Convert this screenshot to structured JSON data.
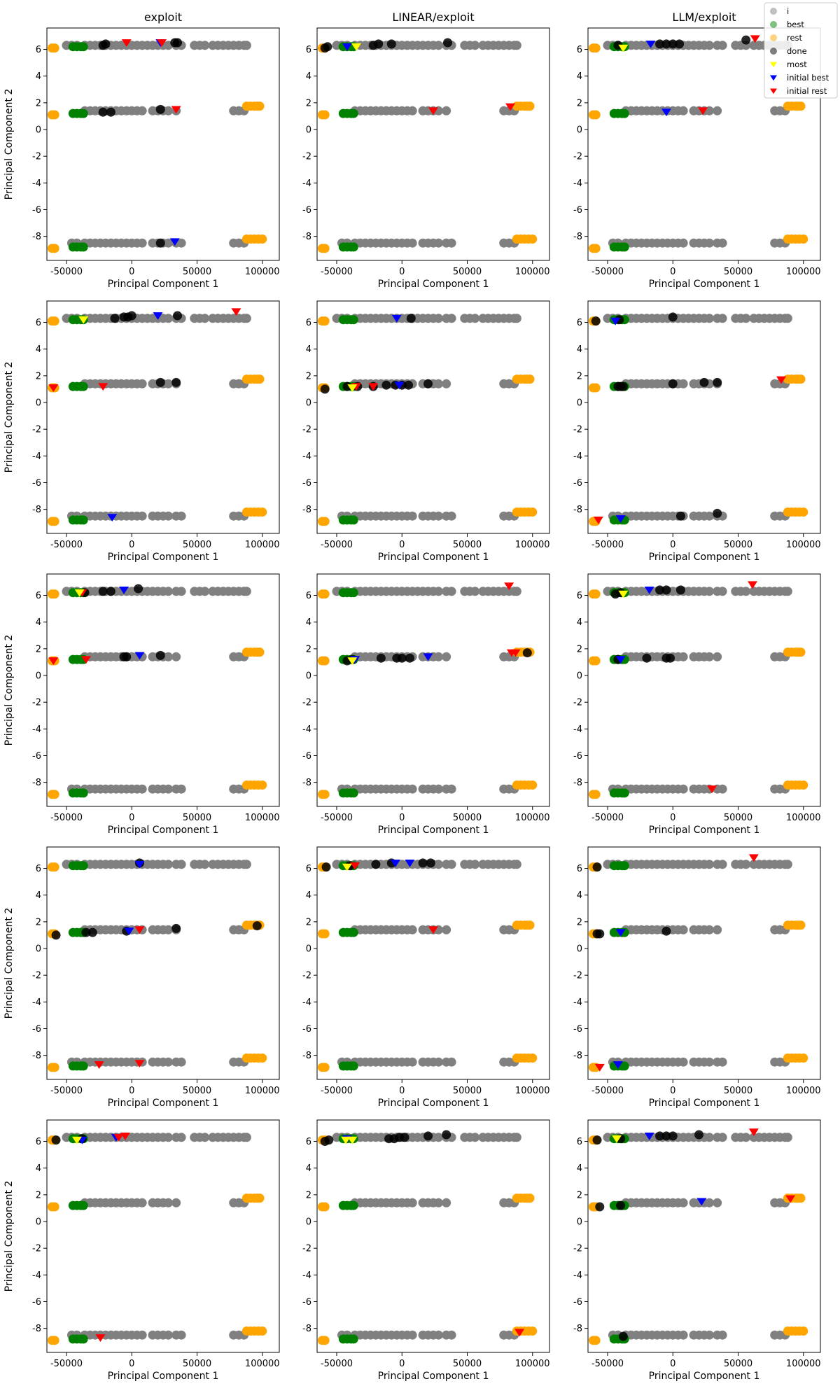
{
  "figure": {
    "columns": [
      "exploit",
      "LINEAR/exploit",
      "LLM/exploit"
    ],
    "xlabel": "Principal Component 1",
    "ylabel": "Principal Component 2"
  },
  "legend": {
    "placement": "top-right",
    "entries": [
      {
        "label": "i",
        "marker": "circle",
        "color": "#808080"
      },
      {
        "label": "best",
        "marker": "circle",
        "color": "#008000"
      },
      {
        "label": "rest",
        "marker": "circle",
        "color": "#FFA500"
      },
      {
        "label": "done",
        "marker": "circle",
        "color": "#000000"
      },
      {
        "label": "most",
        "marker": "triangle-down",
        "color": "#FFFF00"
      },
      {
        "label": "initial best",
        "marker": "triangle-down",
        "color": "#0000FF"
      },
      {
        "label": "initial rest",
        "marker": "triangle-down",
        "color": "#FF0000"
      }
    ]
  },
  "chart_data": {
    "type": "scatter",
    "layout": "5 rows x 3 columns",
    "xlim": [
      -65000,
      113000
    ],
    "ylim": [
      -9.8,
      7.6
    ],
    "xticks": [
      -50000,
      0,
      50000,
      100000
    ],
    "yticks": [
      -8,
      -6,
      -4,
      -2,
      0,
      2,
      4,
      6
    ],
    "grid": false,
    "colors": {
      "i": "#808080",
      "best": "#008000",
      "rest": "#FFA500",
      "done": "#000000",
      "most": "#FFFF00",
      "initial_best": "#0000FF",
      "initial_rest": "#FF0000"
    },
    "background_points": {
      "i_bands": [
        {
          "y": 6.3,
          "x": [
            -50000,
            -46000,
            -42000,
            -36000,
            -32000,
            -28000,
            -24000,
            -20000,
            -16000,
            -12000,
            -8000,
            -4000,
            0,
            4000,
            8000,
            12000,
            16000,
            20000,
            24000,
            28000,
            34000,
            38000,
            48000,
            52000,
            56000,
            62000,
            66000,
            70000,
            74000,
            78000,
            82000,
            86000,
            88000
          ]
        },
        {
          "y": 1.4,
          "x": [
            -36000,
            -32000,
            -28000,
            -24000,
            -20000,
            -16000,
            -12000,
            -8000,
            -4000,
            0,
            4000,
            8000,
            16000,
            20000,
            24000,
            28000,
            34000,
            78000,
            82000,
            86000
          ]
        },
        {
          "y": -8.5,
          "x": [
            -46000,
            -42000,
            -36000,
            -32000,
            -28000,
            -24000,
            -20000,
            -16000,
            -12000,
            -8000,
            -4000,
            0,
            4000,
            8000,
            16000,
            20000,
            24000,
            28000,
            34000,
            38000,
            78000,
            82000,
            86000
          ]
        }
      ],
      "best_bands": [
        {
          "y": 6.2,
          "x": [
            -45000,
            -42000,
            -39000,
            -37000
          ]
        },
        {
          "y": 1.2,
          "x": [
            -45000,
            -42000,
            -39000,
            -37000
          ]
        },
        {
          "y": -8.8,
          "x": [
            -45000,
            -42000,
            -39000,
            -37000
          ]
        }
      ],
      "rest_bands": [
        {
          "y": 6.1,
          "x": [
            -61000,
            -59000
          ]
        },
        {
          "y": 1.1,
          "x": [
            -61000,
            -59000
          ]
        },
        {
          "y": -8.9,
          "x": [
            -61000,
            -59000
          ]
        },
        {
          "y": 1.75,
          "x": [
            88000,
            91000,
            94000,
            96000,
            98000
          ]
        },
        {
          "y": -8.2,
          "x": [
            88000,
            91000,
            94000,
            97000,
            100000
          ]
        }
      ]
    },
    "panels": [
      {
        "row": 0,
        "col": 0,
        "done": [
          [
            -22000,
            6.3
          ],
          [
            -20000,
            6.4
          ],
          [
            33000,
            6.5
          ],
          [
            35000,
            6.5
          ],
          [
            -22000,
            1.3
          ],
          [
            -16000,
            1.3
          ],
          [
            22000,
            1.5
          ],
          [
            22000,
            -8.5
          ]
        ],
        "most": [],
        "initial_best": [
          [
            22000,
            6.5
          ],
          [
            33000,
            -8.4
          ]
        ],
        "initial_rest": [
          [
            -4000,
            6.5
          ],
          [
            23000,
            6.5
          ],
          [
            34000,
            1.5
          ]
        ]
      },
      {
        "row": 0,
        "col": 1,
        "done": [
          [
            -59000,
            6.1
          ],
          [
            -57000,
            6.2
          ],
          [
            -22000,
            6.3
          ],
          [
            -18000,
            6.4
          ],
          [
            -8000,
            6.4
          ],
          [
            35000,
            6.5
          ]
        ],
        "most": [
          [
            -35000,
            6.2
          ]
        ],
        "initial_best": [
          [
            -42000,
            6.2
          ]
        ],
        "initial_rest": [
          [
            24000,
            1.4
          ],
          [
            83000,
            1.7
          ]
        ]
      },
      {
        "row": 0,
        "col": 2,
        "done": [
          [
            -42000,
            6.3
          ],
          [
            -10000,
            6.4
          ],
          [
            -5000,
            6.4
          ],
          [
            0,
            6.4
          ],
          [
            5000,
            6.4
          ],
          [
            56000,
            6.7
          ]
        ],
        "most": [
          [
            -38000,
            6.1
          ]
        ],
        "initial_best": [
          [
            -17000,
            6.4
          ],
          [
            -5000,
            1.3
          ]
        ],
        "initial_rest": [
          [
            23000,
            1.4
          ],
          [
            63000,
            6.8
          ]
        ]
      },
      {
        "row": 1,
        "col": 0,
        "done": [
          [
            -13000,
            6.3
          ],
          [
            -6000,
            6.4
          ],
          [
            -3000,
            6.4
          ],
          [
            0,
            6.5
          ],
          [
            22000,
            1.5
          ],
          [
            34000,
            1.5
          ],
          [
            35000,
            6.5
          ]
        ],
        "most": [
          [
            -37000,
            6.2
          ]
        ],
        "initial_best": [
          [
            20000,
            6.5
          ],
          [
            -15000,
            -8.6
          ]
        ],
        "initial_rest": [
          [
            -60000,
            1.1
          ],
          [
            -22000,
            1.2
          ],
          [
            80000,
            6.8
          ]
        ]
      },
      {
        "row": 1,
        "col": 1,
        "done": [
          [
            -59000,
            1.0
          ],
          [
            -42000,
            1.2
          ],
          [
            -34000,
            1.2
          ],
          [
            -22000,
            1.2
          ],
          [
            -12000,
            1.3
          ],
          [
            -5000,
            1.3
          ],
          [
            0,
            1.3
          ],
          [
            5000,
            1.3
          ],
          [
            7000,
            6.3
          ],
          [
            20000,
            1.4
          ]
        ],
        "most": [
          [
            -38000,
            1.1
          ]
        ],
        "initial_best": [
          [
            -4000,
            6.3
          ],
          [
            -2000,
            1.3
          ]
        ],
        "initial_rest": [
          [
            -35000,
            1.2
          ],
          [
            -22000,
            1.2
          ]
        ]
      },
      {
        "row": 1,
        "col": 2,
        "done": [
          [
            -59000,
            6.1
          ],
          [
            -41000,
            6.2
          ],
          [
            -42000,
            1.2
          ],
          [
            -40000,
            1.2
          ],
          [
            -38000,
            1.2
          ],
          [
            0,
            6.4
          ],
          [
            0,
            1.4
          ],
          [
            24000,
            1.5
          ],
          [
            34000,
            1.5
          ],
          [
            6000,
            -8.5
          ],
          [
            34000,
            -8.3
          ]
        ],
        "most": [],
        "initial_best": [
          [
            -44000,
            6.1
          ],
          [
            -40000,
            -8.7
          ]
        ],
        "initial_rest": [
          [
            -57000,
            -8.8
          ],
          [
            83000,
            1.7
          ]
        ]
      },
      {
        "row": 2,
        "col": 0,
        "done": [
          [
            -36000,
            6.2
          ],
          [
            -22000,
            6.3
          ],
          [
            -16000,
            6.3
          ],
          [
            5000,
            6.5
          ],
          [
            -6000,
            1.4
          ],
          [
            -4000,
            1.4
          ],
          [
            22000,
            1.5
          ]
        ],
        "most": [
          [
            -40000,
            6.2
          ]
        ],
        "initial_best": [
          [
            -6000,
            6.4
          ],
          [
            6000,
            1.5
          ]
        ],
        "initial_rest": [
          [
            -60000,
            1.1
          ],
          [
            -38000,
            6.2
          ],
          [
            -35000,
            1.2
          ]
        ]
      },
      {
        "row": 2,
        "col": 1,
        "done": [
          [
            -42000,
            1.1
          ],
          [
            -38000,
            1.2
          ],
          [
            -16000,
            1.3
          ],
          [
            -4000,
            1.3
          ],
          [
            0,
            1.3
          ],
          [
            6000,
            1.3
          ],
          [
            96000,
            1.7
          ]
        ],
        "most": [
          [
            -38000,
            1.1
          ]
        ],
        "initial_best": [
          [
            20000,
            1.4
          ],
          [
            -36000,
            1.2
          ]
        ],
        "initial_rest": [
          [
            82000,
            6.7
          ],
          [
            84000,
            1.7
          ],
          [
            87000,
            1.7
          ]
        ]
      },
      {
        "row": 2,
        "col": 2,
        "done": [
          [
            -44000,
            6.1
          ],
          [
            -40000,
            6.2
          ],
          [
            -10000,
            6.4
          ],
          [
            -5000,
            6.4
          ],
          [
            6000,
            6.4
          ],
          [
            -42000,
            1.2
          ],
          [
            -20000,
            1.3
          ],
          [
            -5000,
            1.3
          ],
          [
            -2000,
            1.3
          ]
        ],
        "most": [
          [
            -38000,
            6.1
          ]
        ],
        "initial_best": [
          [
            -18000,
            6.4
          ],
          [
            -40000,
            1.2
          ]
        ],
        "initial_rest": [
          [
            61000,
            6.8
          ],
          [
            30000,
            -8.5
          ]
        ]
      },
      {
        "row": 3,
        "col": 0,
        "done": [
          [
            -58000,
            1.0
          ],
          [
            -35000,
            1.2
          ],
          [
            -30000,
            1.2
          ],
          [
            -4000,
            1.3
          ],
          [
            6000,
            6.4
          ],
          [
            34000,
            1.5
          ],
          [
            96000,
            1.7
          ]
        ],
        "most": [],
        "initial_best": [
          [
            6000,
            6.3
          ],
          [
            -2000,
            1.3
          ]
        ],
        "initial_rest": [
          [
            -25000,
            -8.7
          ],
          [
            6000,
            -8.6
          ],
          [
            6000,
            1.4
          ]
        ]
      },
      {
        "row": 3,
        "col": 1,
        "done": [
          [
            -58000,
            6.1
          ],
          [
            -40000,
            6.2
          ],
          [
            -20000,
            6.3
          ],
          [
            -8000,
            6.4
          ],
          [
            16000,
            6.4
          ],
          [
            22000,
            6.4
          ]
        ],
        "most": [
          [
            -42000,
            6.1
          ]
        ],
        "initial_best": [
          [
            -5000,
            6.4
          ],
          [
            6000,
            6.4
          ]
        ],
        "initial_rest": [
          [
            -36000,
            6.2
          ],
          [
            24000,
            1.4
          ]
        ]
      },
      {
        "row": 3,
        "col": 2,
        "done": [
          [
            -58000,
            6.1
          ],
          [
            -58000,
            1.1
          ],
          [
            -56000,
            1.1
          ],
          [
            -5000,
            1.3
          ]
        ],
        "most": [],
        "initial_best": [
          [
            -40000,
            1.2
          ],
          [
            -42000,
            -8.7
          ]
        ],
        "initial_rest": [
          [
            -56000,
            -8.9
          ],
          [
            62000,
            6.8
          ]
        ]
      },
      {
        "row": 4,
        "col": 0,
        "done": [
          [
            -58000,
            6.1
          ],
          [
            -38000,
            6.2
          ]
        ],
        "most": [
          [
            -42000,
            6.1
          ]
        ],
        "initial_best": [
          [
            -38000,
            6.1
          ],
          [
            -12000,
            6.3
          ]
        ],
        "initial_rest": [
          [
            -10000,
            6.3
          ],
          [
            -5000,
            6.4
          ],
          [
            -24000,
            -8.7
          ]
        ]
      },
      {
        "row": 4,
        "col": 1,
        "done": [
          [
            -59000,
            6.0
          ],
          [
            -56000,
            6.1
          ],
          [
            -10000,
            6.2
          ],
          [
            -6000,
            6.2
          ],
          [
            -2000,
            6.3
          ],
          [
            2000,
            6.3
          ],
          [
            20000,
            6.4
          ],
          [
            34000,
            6.5
          ]
        ],
        "most": [
          [
            -43000,
            6.1
          ],
          [
            -38000,
            6.1
          ]
        ],
        "initial_best": [
          [
            -42000,
            6.2
          ]
        ],
        "initial_rest": [
          [
            90000,
            -8.3
          ]
        ]
      },
      {
        "row": 4,
        "col": 2,
        "done": [
          [
            -58000,
            6.1
          ],
          [
            -40000,
            6.2
          ],
          [
            -10000,
            6.4
          ],
          [
            -5000,
            6.4
          ],
          [
            0,
            6.4
          ],
          [
            20000,
            6.5
          ],
          [
            -56000,
            1.1
          ],
          [
            -40000,
            1.2
          ],
          [
            -38000,
            -8.6
          ]
        ],
        "most": [
          [
            -43000,
            6.2
          ]
        ],
        "initial_best": [
          [
            -18000,
            6.4
          ],
          [
            22000,
            1.5
          ]
        ],
        "initial_rest": [
          [
            62000,
            6.7
          ],
          [
            90000,
            1.7
          ]
        ]
      }
    ]
  }
}
